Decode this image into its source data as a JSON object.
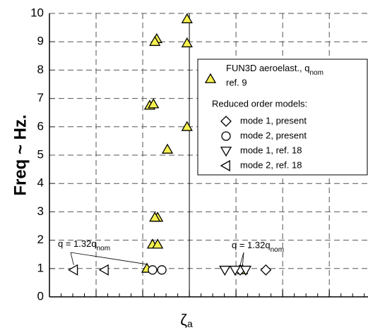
{
  "chart_data": {
    "type": "scatter",
    "y_label": "Freq ~ Hz.",
    "x_label": "ζ",
    "x_label_sub": "a",
    "ylim": [
      0,
      10
    ],
    "yticks": [
      0,
      1,
      2,
      3,
      4,
      5,
      6,
      7,
      8,
      9,
      10
    ],
    "xlim": [
      -3,
      3.83
    ],
    "xticks": [
      -2,
      -1,
      0,
      1,
      2,
      3
    ],
    "grid": true,
    "legend_title": "Reduced order models:",
    "series": [
      {
        "name": "FUN3D aeroelast., q",
        "name_sub": "nom",
        "name_line2": "ref. 9",
        "marker": "triangle-up",
        "color": "#f7f14e",
        "x": [
          -0.05,
          -0.05,
          -0.7,
          -0.74,
          -0.85,
          -0.77,
          -0.47,
          -0.05,
          -0.68,
          -0.74,
          -0.79,
          -0.68,
          -0.91,
          1.14
        ],
        "values": [
          9.8,
          8.95,
          9.1,
          9.0,
          6.75,
          6.8,
          5.2,
          6.0,
          2.8,
          2.8,
          1.85,
          1.85,
          1.0,
          0.95
        ]
      },
      {
        "name": "mode 1, present",
        "marker": "diamond",
        "color": "#ffffff",
        "x": [
          1.09,
          1.64
        ],
        "values": [
          0.95,
          0.95
        ]
      },
      {
        "name": "mode 2, present",
        "marker": "circle",
        "color": "#ffffff",
        "x": [
          -0.79,
          -0.59
        ],
        "values": [
          0.95,
          0.95
        ]
      },
      {
        "name": "mode 1, ref.  18",
        "marker": "triangle-down",
        "color": "#ffffff",
        "x": [
          0.76,
          0.98,
          1.21
        ],
        "values": [
          0.95,
          0.95,
          0.95
        ]
      },
      {
        "name": "mode 2, ref.  18",
        "marker": "triangle-left",
        "color": "#ffffff",
        "x": [
          -2.48,
          -1.82
        ],
        "values": [
          0.95,
          0.95
        ]
      }
    ],
    "annotations": [
      {
        "text": "q = 1.32q",
        "sub": "nom"
      },
      {
        "text": "q = 1.32q",
        "sub": "nom"
      }
    ]
  }
}
